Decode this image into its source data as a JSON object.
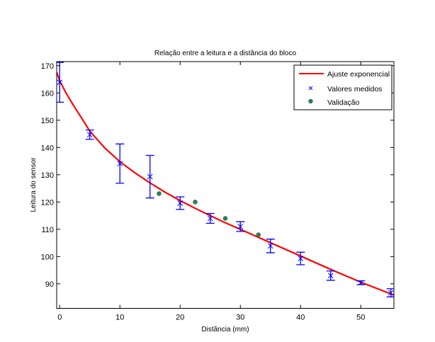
{
  "chart_data": {
    "type": "scatter",
    "title": "Relação entre a leitura e a distância do bloco",
    "xlabel": "Distância (mm)",
    "ylabel": "Leitura do sensor",
    "xlim": [
      -0.5,
      55.5
    ],
    "ylim": [
      81,
      171.5
    ],
    "xticks": [
      0,
      10,
      20,
      30,
      40,
      50
    ],
    "yticks": [
      90,
      100,
      110,
      120,
      130,
      140,
      150,
      160,
      170
    ],
    "grid": false,
    "legend_position": "top-right",
    "series": [
      {
        "name": "Ajuste exponencial",
        "kind": "line",
        "color": "#ff0000",
        "x": [
          -0.5,
          0,
          1,
          2,
          2.5,
          3.5,
          5,
          7.5,
          10,
          12.5,
          15,
          17.5,
          20,
          22.5,
          25,
          27.5,
          30,
          35,
          40,
          45,
          50,
          55,
          55.5
        ],
        "y": [
          167.6,
          164.5,
          160.2,
          156.5,
          154.7,
          151.3,
          146.0,
          139.8,
          134.8,
          130.7,
          127.0,
          123.6,
          120.5,
          117.7,
          115.0,
          112.4,
          110.0,
          105.1,
          100.2,
          95.3,
          90.6,
          86.3,
          85.9
        ]
      },
      {
        "name": "Valores medidos",
        "kind": "errorbar",
        "color": "#0000ff",
        "x": [
          0,
          5,
          10,
          15,
          20,
          25,
          30,
          35,
          40,
          45,
          50,
          55
        ],
        "y": [
          163.9,
          144.7,
          134.1,
          129.3,
          119.6,
          114.0,
          111.0,
          103.9,
          99.3,
          93.0,
          90.4,
          86.7
        ],
        "error": [
          7.3,
          1.7,
          7.2,
          7.8,
          2.3,
          1.8,
          1.8,
          2.5,
          2.3,
          1.7,
          0.7,
          1.5
        ]
      },
      {
        "name": "Validação",
        "kind": "scatter",
        "color": "#2e7d5b",
        "x": [
          16.5,
          22.5,
          27.5,
          33
        ],
        "y": [
          123.1,
          120.0,
          114.0,
          108.0
        ]
      }
    ]
  }
}
